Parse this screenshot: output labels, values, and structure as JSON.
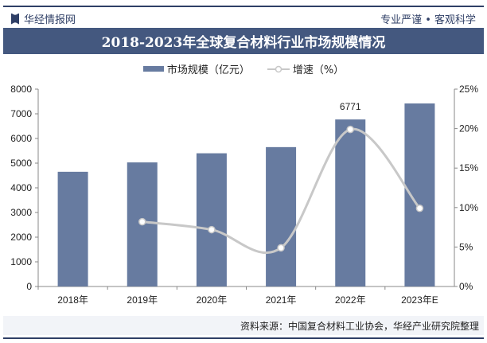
{
  "header": {
    "brand": "华经情报网",
    "slogan": "专业严谨 • 客观科学"
  },
  "source": "资料来源：中国复合材料工业协会，华经产业研究院整理",
  "chart_data": {
    "type": "bar",
    "title": "2018-2023年全球复合材料行业市场规模情况",
    "categories": [
      "2018年",
      "2019年",
      "2020年",
      "2021年",
      "2022年",
      "2023年E"
    ],
    "series": [
      {
        "name": "市场规模（亿元）",
        "type": "bar",
        "axis": "left",
        "color": "#677ba0",
        "values": [
          4650,
          5030,
          5400,
          5650,
          6771,
          7420
        ]
      },
      {
        "name": "增速（%）",
        "type": "line",
        "axis": "right",
        "color": "#c8c8c8",
        "values": [
          null,
          8.2,
          7.2,
          4.9,
          19.9,
          9.9
        ]
      }
    ],
    "data_labels": [
      {
        "category": "2022年",
        "text": "6771"
      }
    ],
    "ylim": [
      0,
      8000
    ],
    "yticks": [
      "0",
      "1000",
      "2000",
      "3000",
      "4000",
      "5000",
      "6000",
      "7000",
      "8000"
    ],
    "y2lim": [
      0,
      25
    ],
    "y2ticks": [
      "0%",
      "5%",
      "10%",
      "15%",
      "20%",
      "25%"
    ],
    "legend": "top",
    "grid": false
  }
}
